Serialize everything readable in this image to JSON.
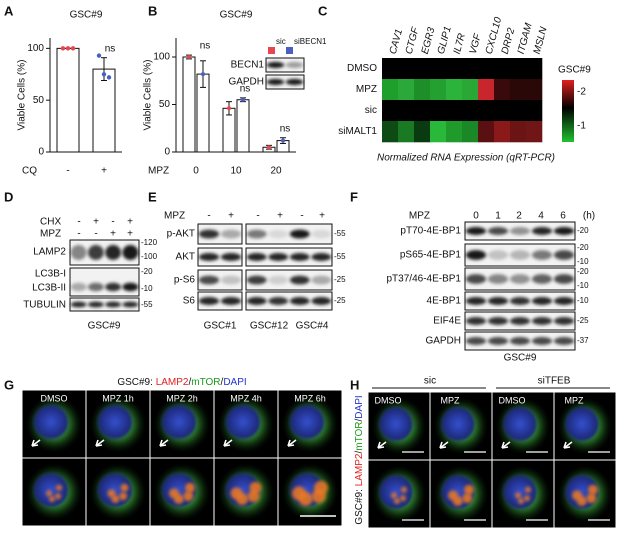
{
  "chart_data": [
    {
      "type": "bar",
      "title": "GSC#9",
      "y_label": "Viable Cells (%)",
      "x_label": "CQ",
      "categories": [
        "-",
        "+"
      ],
      "values": [
        100,
        80
      ],
      "errors": [
        0,
        11
      ],
      "points": [
        [
          100,
          100,
          100
        ],
        [
          93,
          75,
          72
        ]
      ],
      "point_colors": [
        "#e8464e",
        "#4a5fc1"
      ],
      "annotations": [
        null,
        "ns"
      ],
      "color": "#ffffff",
      "ylim": [
        0,
        110
      ],
      "yticks": [
        0,
        50,
        100
      ]
    },
    {
      "type": "grouped_bar",
      "title": "GSC#9",
      "y_label": "Viable Cells (%)",
      "x_label": "MPZ",
      "categories": [
        "0",
        "10",
        "20"
      ],
      "series": [
        {
          "name": "sic",
          "color": "#e8464e",
          "values": [
            100,
            46,
            5
          ],
          "errors": [
            2,
            7,
            2
          ]
        },
        {
          "name": "siBECN1",
          "color": "#4a5fc1",
          "values": [
            82,
            55,
            12
          ],
          "errors": [
            14,
            2,
            3
          ]
        }
      ],
      "annotations": [
        "ns",
        "ns",
        "ns"
      ],
      "ylim": [
        0,
        120
      ],
      "yticks": [
        0,
        50,
        100
      ]
    }
  ],
  "panel_labels": [
    "A",
    "B",
    "C",
    "D",
    "E",
    "F",
    "G",
    "H"
  ],
  "panel_b_blot": {
    "bands": [
      "BECN1",
      "GAPDH"
    ]
  },
  "panel_c": {
    "genes": [
      "CAV1",
      "CTGF",
      "EGR3",
      "GLIP1",
      "IL7R",
      "VGF",
      "CXCL10",
      "DRP2",
      "ITGAM",
      "MSLN"
    ],
    "row_labels": [
      "DMSO",
      "MPZ",
      "sic",
      "siMALT1"
    ],
    "cells": [
      [
        "#000000",
        "#000000",
        "#000000",
        "#000000",
        "#000000",
        "#000000",
        "#000000",
        "#000000",
        "#000000",
        "#000000"
      ],
      [
        "#1e9e2a",
        "#2aa83a",
        "#1e8f28",
        "#23a030",
        "#2bb33b",
        "#2aa835",
        "#c8262c",
        "#3a0a0a",
        "#2a0808",
        "#2a0808"
      ],
      [
        "#000000",
        "#000000",
        "#000000",
        "#000000",
        "#000000",
        "#000000",
        "#000000",
        "#000000",
        "#000000",
        "#000000"
      ],
      [
        "#0e4a14",
        "#1a7a24",
        "#0a3a10",
        "#2ab83a",
        "#1f9a2b",
        "#1a8826",
        "#5a1010",
        "#8a1a1a",
        "#6a1414",
        "#701616"
      ]
    ],
    "legend_title": "GSC#9",
    "colorbar_ticks": [
      "-2",
      "-1"
    ],
    "caption": "Normalized RNA Expression (qRT-PCR)"
  },
  "panel_d": {
    "treatments": [
      {
        "name": "CHX",
        "signs": [
          "-",
          "+",
          "-",
          "+"
        ]
      },
      {
        "name": "MPZ",
        "signs": [
          "-",
          "-",
          "+",
          "+"
        ]
      }
    ],
    "bands": [
      "LAMP2",
      "LC3B-I",
      "LC3B-II",
      "TUBULIN"
    ],
    "markers": [
      "-120",
      "-100",
      "-20",
      "-10",
      "-55"
    ],
    "cell_line": "GSC#9"
  },
  "panel_e": {
    "treatment": "MPZ",
    "signs": [
      "-",
      "+",
      "-",
      "+",
      "-",
      "+"
    ],
    "bands": [
      "p-AKT",
      "AKT",
      "p-S6",
      "S6"
    ],
    "markers": [
      "-55",
      "-55",
      "-25",
      "-25"
    ],
    "cell_lines": [
      "GSC#1",
      "GSC#12",
      "GSC#4"
    ]
  },
  "panel_f": {
    "treatment": "MPZ",
    "times": [
      "0",
      "1",
      "2",
      "4",
      "6"
    ],
    "unit": "(h)",
    "bands": [
      "pT70-4E-BP1",
      "pS65-4E-BP1",
      "pT37/46-4E-BP1",
      "4E-BP1",
      "EIF4E",
      "GAPDH"
    ],
    "markers": [
      [
        "-20"
      ],
      [
        "-20",
        "-10"
      ],
      [
        "-20",
        "-10"
      ],
      [
        "-10"
      ],
      [
        "-25"
      ],
      [
        "-37"
      ]
    ],
    "cell_line": "GSC#9"
  },
  "panel_g": {
    "title_parts": [
      "GSC#9: ",
      "LAMP2",
      "/",
      "mTOR",
      "/",
      "DAPI"
    ],
    "conditions": [
      "DMSO",
      "MPZ 1h",
      "MPZ 2h",
      "MPZ 4h",
      "MPZ 6h"
    ]
  },
  "panel_h": {
    "groups": [
      "sic",
      "siTFEB"
    ],
    "conditions": [
      "DMSO",
      "MPZ",
      "DMSO",
      "MPZ"
    ],
    "y_label_parts": [
      "GSC#9: ",
      "LAMP2",
      "/",
      "mTOR",
      "/",
      "DAPI"
    ]
  }
}
